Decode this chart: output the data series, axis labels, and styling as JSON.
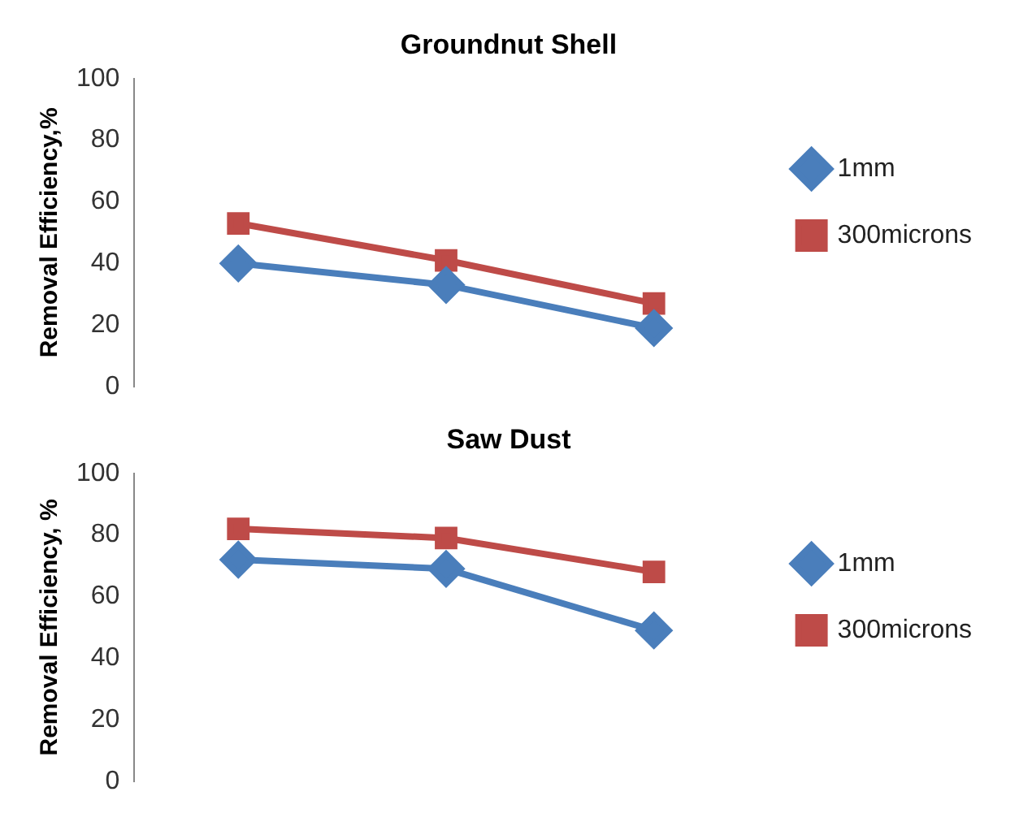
{
  "chart_data": [
    {
      "type": "line",
      "title": "Groundnut Shell",
      "ylabel": "Removal Efficiency,%",
      "categories": [
        null,
        null,
        null
      ],
      "ylim": [
        0,
        100
      ],
      "yticks": [
        0,
        20,
        40,
        60,
        80,
        100
      ],
      "grid": false,
      "legend": "right",
      "tick_labels": "y",
      "series": [
        {
          "name": "1mm",
          "color": "#4a7ebb",
          "marker": "diamond",
          "values": [
            40,
            33,
            19
          ]
        },
        {
          "name": "300microns",
          "color": "#be4b48",
          "marker": "square",
          "values": [
            53,
            41,
            27
          ]
        }
      ]
    },
    {
      "type": "line",
      "title": "Saw Dust",
      "ylabel": "Removal Efficiency, %",
      "categories": [
        null,
        null,
        null
      ],
      "ylim": [
        0,
        100
      ],
      "yticks": [
        0,
        20,
        40,
        60,
        80,
        100
      ],
      "grid": false,
      "legend": "right",
      "tick_labels": "y",
      "series": [
        {
          "name": "1mm",
          "color": "#4a7ebb",
          "marker": "diamond",
          "values": [
            72,
            69,
            49
          ]
        },
        {
          "name": "300microns",
          "color": "#be4b48",
          "marker": "square",
          "values": [
            82,
            79,
            68
          ]
        }
      ]
    }
  ]
}
